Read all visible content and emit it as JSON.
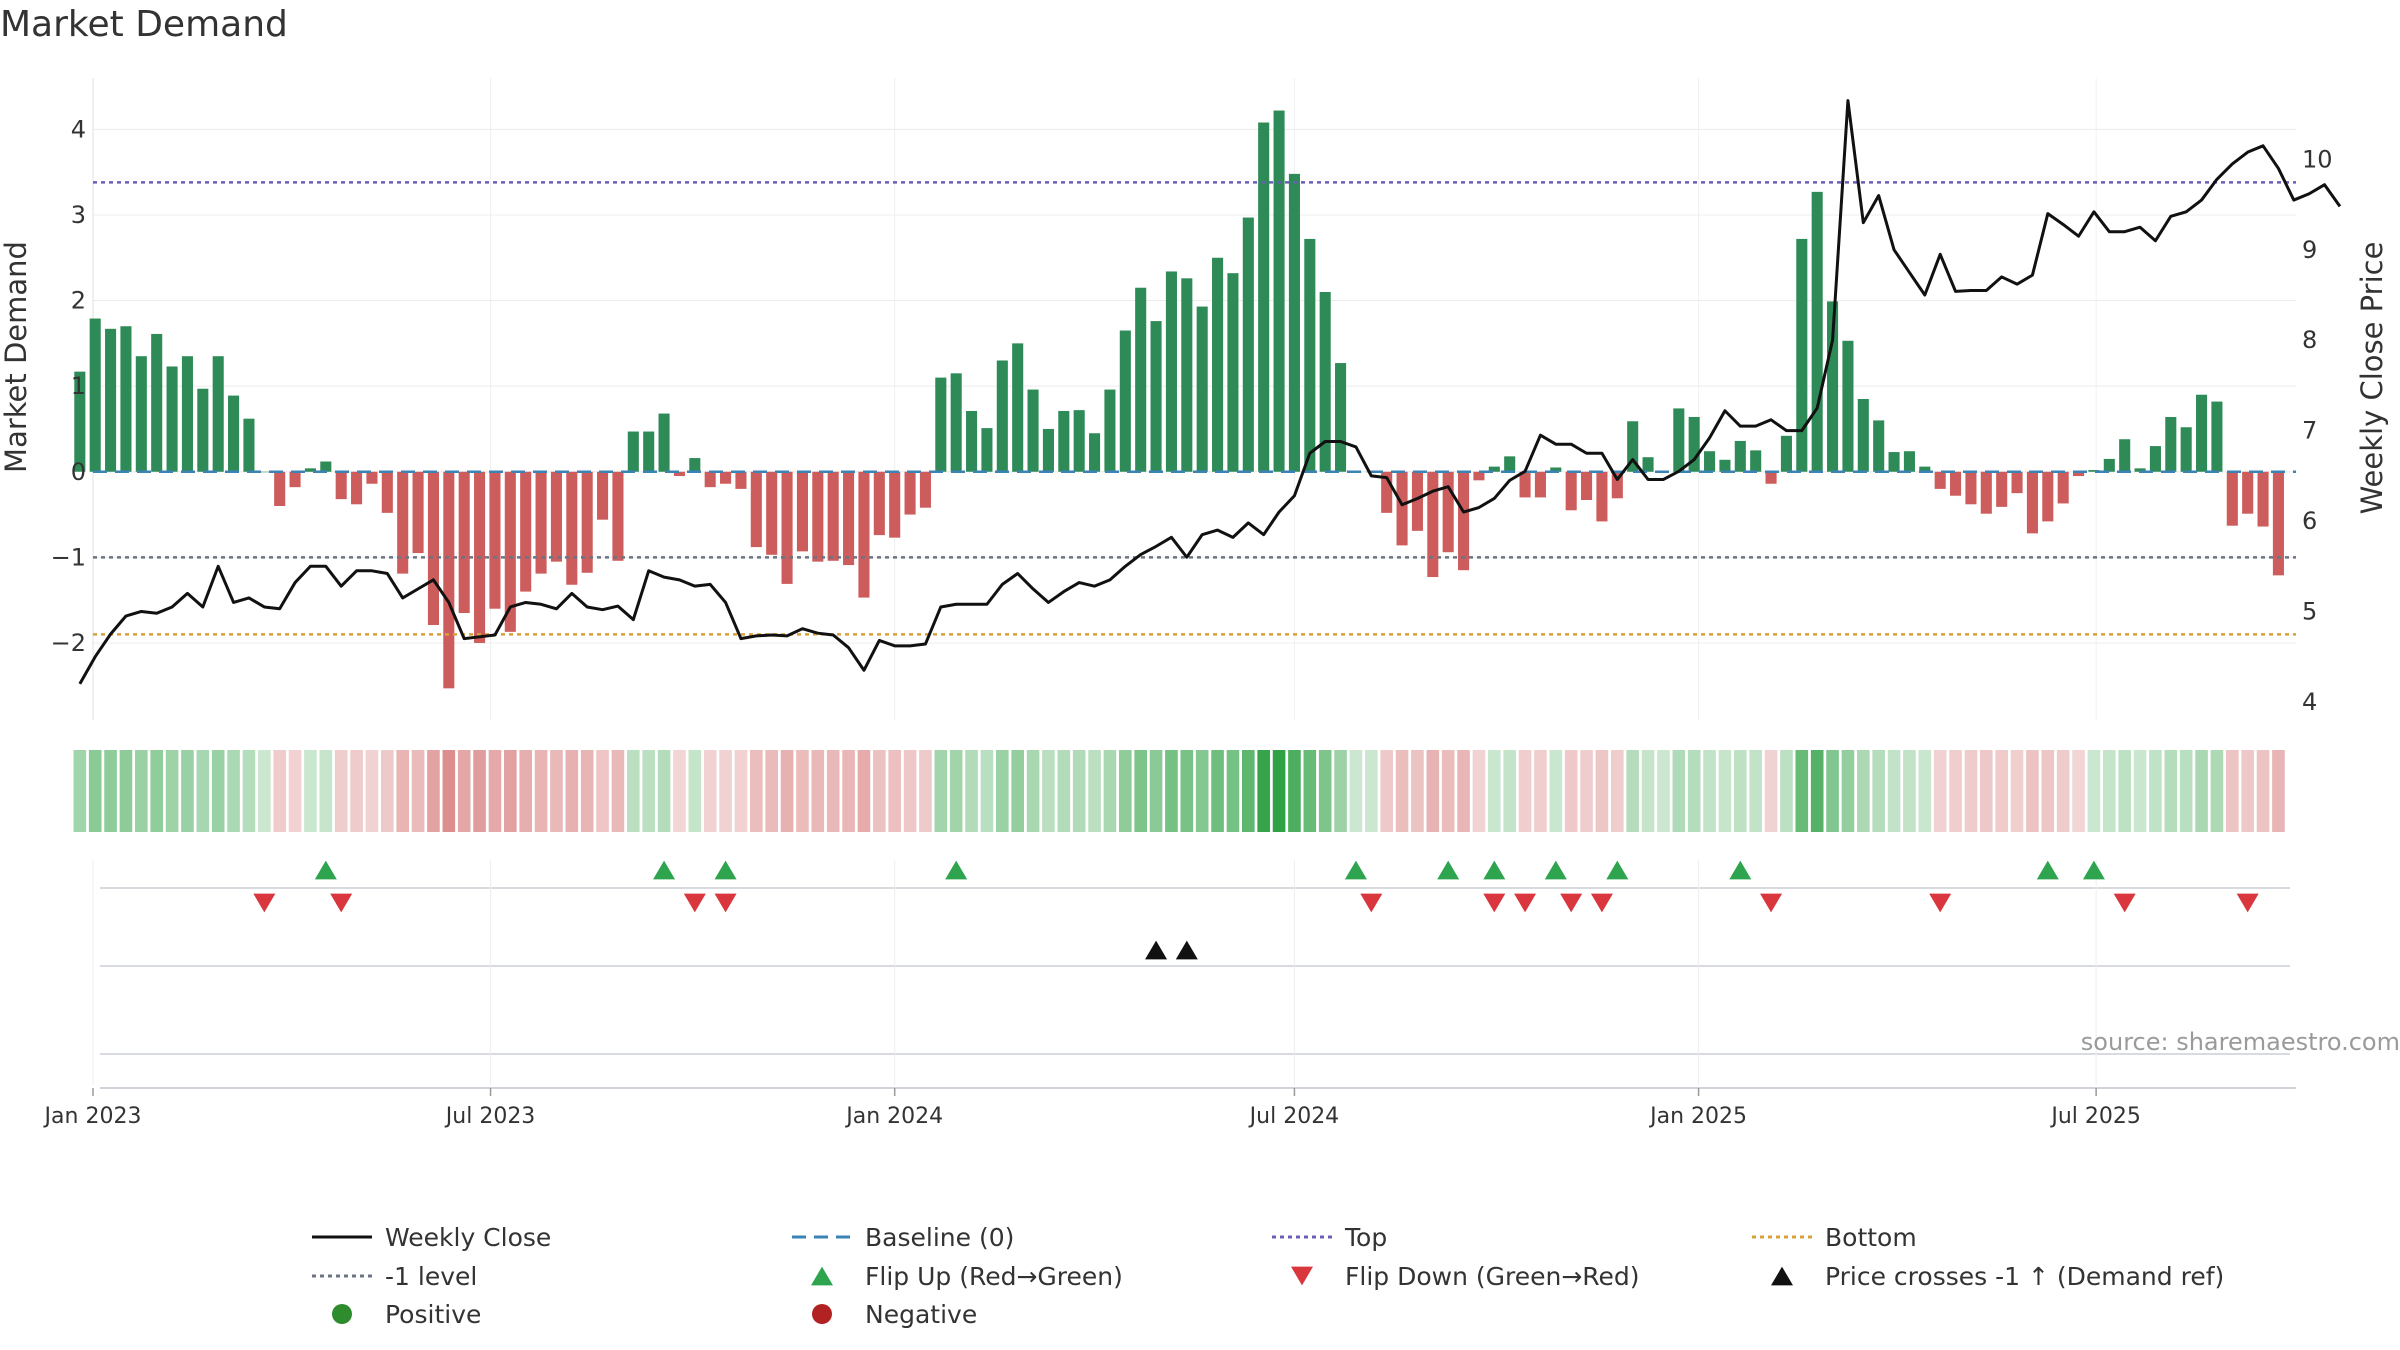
{
  "chart_data": {
    "type": "bar",
    "title": "Market Demand",
    "ylabel_left": "Market Demand",
    "ylabel_right": "Weekly Close Price",
    "ylim_left": [
      -2.9,
      4.6
    ],
    "ylim_right": [
      3.8,
      10.9
    ],
    "yticks_left": [
      -2,
      -1,
      0,
      1,
      2,
      3,
      4
    ],
    "yticks_left_labels": [
      "−2",
      "−1",
      "0",
      "1",
      "2",
      "3",
      "4"
    ],
    "yticks_right": [
      4,
      5,
      6,
      7,
      8,
      9,
      10
    ],
    "yticks_right_labels": [
      "4",
      "5",
      "6",
      "7",
      "8",
      "9",
      "10"
    ],
    "x_start": "2023-01-01",
    "x_end": "2025-09-30",
    "xtick_dates": [
      "2023-01-01",
      "2023-07-01",
      "2024-01-01",
      "2024-07-01",
      "2025-01-01",
      "2025-07-01"
    ],
    "xtick_labels": [
      "Jan 2023",
      "Jul 2023",
      "Jan 2024",
      "Jul 2024",
      "Jan 2025",
      "Jul 2025"
    ],
    "bar_start": "2022-12-26",
    "bar_step_days": 7,
    "demand": [
      1.17,
      1.79,
      1.67,
      1.7,
      1.35,
      1.61,
      1.23,
      1.35,
      0.97,
      1.35,
      0.89,
      0.62,
      0.0,
      -0.4,
      -0.18,
      0.04,
      0.12,
      -0.32,
      -0.38,
      -0.14,
      -0.48,
      -1.19,
      -0.95,
      -1.79,
      -2.53,
      -1.65,
      -2.0,
      -1.6,
      -1.87,
      -1.4,
      -1.19,
      -1.05,
      -1.32,
      -1.18,
      -0.56,
      -1.04,
      0.47,
      0.47,
      0.68,
      -0.05,
      0.16,
      -0.18,
      -0.14,
      -0.2,
      -0.88,
      -0.97,
      -1.31,
      -0.93,
      -1.05,
      -1.04,
      -1.09,
      -1.47,
      -0.74,
      -0.77,
      -0.5,
      -0.42,
      1.1,
      1.15,
      0.71,
      0.51,
      1.3,
      1.5,
      0.96,
      0.5,
      0.71,
      0.72,
      0.45,
      0.96,
      1.65,
      2.15,
      1.76,
      2.34,
      2.26,
      1.93,
      2.5,
      2.32,
      2.97,
      4.08,
      4.22,
      3.48,
      2.72,
      2.1,
      1.27,
      0.0,
      0.0,
      -0.48,
      -0.86,
      -0.69,
      -1.23,
      -0.94,
      -1.15,
      -0.1,
      0.06,
      0.18,
      -0.3,
      -0.3,
      0.05,
      -0.45,
      -0.33,
      -0.58,
      -0.31,
      0.59,
      0.17,
      0.0,
      0.74,
      0.64,
      0.24,
      0.14,
      0.36,
      0.25,
      -0.14,
      0.42,
      2.72,
      3.27,
      1.99,
      1.53,
      0.85,
      0.6,
      0.23,
      0.24,
      0.06,
      -0.2,
      -0.28,
      -0.38,
      -0.49,
      -0.41,
      -0.25,
      -0.72,
      -0.58,
      -0.37,
      -0.05,
      0.02,
      0.15,
      0.38,
      0.04,
      0.3,
      0.64,
      0.52,
      0.9,
      0.82,
      -0.63,
      -0.49,
      -0.64,
      -1.21
    ],
    "price": [
      4.2,
      4.5,
      4.75,
      4.95,
      5.0,
      4.98,
      5.05,
      5.2,
      5.05,
      5.5,
      5.1,
      5.15,
      5.05,
      5.03,
      5.32,
      5.5,
      5.5,
      5.28,
      5.45,
      5.45,
      5.42,
      5.15,
      5.25,
      5.35,
      5.1,
      4.7,
      4.72,
      4.74,
      5.05,
      5.1,
      5.08,
      5.03,
      5.2,
      5.05,
      5.02,
      5.06,
      4.91,
      5.45,
      5.38,
      5.35,
      5.28,
      5.3,
      5.1,
      4.7,
      4.73,
      4.74,
      4.73,
      4.81,
      4.76,
      4.74,
      4.6,
      4.35,
      4.68,
      4.62,
      4.62,
      4.64,
      5.05,
      5.08,
      5.08,
      5.08,
      5.3,
      5.42,
      5.25,
      5.1,
      5.22,
      5.32,
      5.28,
      5.35,
      5.5,
      5.63,
      5.72,
      5.82,
      5.6,
      5.85,
      5.9,
      5.82,
      5.98,
      5.85,
      6.1,
      6.28,
      6.75,
      6.88,
      6.88,
      6.82,
      6.5,
      6.48,
      6.18,
      6.25,
      6.33,
      6.38,
      6.1,
      6.15,
      6.25,
      6.45,
      6.55,
      6.95,
      6.85,
      6.85,
      6.75,
      6.75,
      6.46,
      6.68,
      6.46,
      6.46,
      6.55,
      6.68,
      6.92,
      7.22,
      7.05,
      7.05,
      7.12,
      7.0,
      7.0,
      7.25,
      8.0,
      10.65,
      9.3,
      9.6,
      9.0,
      8.75,
      8.5,
      8.95,
      8.54,
      8.55,
      8.55,
      8.7,
      8.62,
      8.72,
      9.4,
      9.28,
      9.15,
      9.42,
      9.2,
      9.2,
      9.25,
      9.1,
      9.37,
      9.42,
      9.55,
      9.78,
      9.95,
      10.08,
      10.15,
      9.9,
      9.55,
      9.62,
      9.72,
      9.48
    ],
    "top_level": 3.38,
    "bottom_level": -1.9,
    "minus1_level": -1,
    "flip_up_weeks": [
      16,
      38,
      42,
      57,
      83,
      89,
      92,
      96,
      100,
      108,
      128,
      131
    ],
    "flip_down_weeks": [
      12,
      17,
      40,
      42,
      84,
      92,
      94,
      97,
      99,
      110,
      121,
      133,
      141
    ],
    "price_cross_weeks": [
      70,
      72
    ],
    "source_text": "source: sharemaestro.com",
    "legend": [
      {
        "label": "Weekly Close",
        "kind": "line",
        "color": "#111111"
      },
      {
        "label": "Baseline (0)",
        "kind": "dashed-line",
        "color": "#3b83b4"
      },
      {
        "label": "Top",
        "kind": "dotted-line",
        "color": "#6a5fb7"
      },
      {
        "label": "Bottom",
        "kind": "dotted-line",
        "color": "#d9a13a"
      },
      {
        "label": "-1 level",
        "kind": "dotted-line",
        "color": "#6c7383"
      },
      {
        "label": "Flip Up (Red→Green)",
        "kind": "triangle-up",
        "color": "#2ea44f"
      },
      {
        "label": "Flip Down (Green→Red)",
        "kind": "triangle-down",
        "color": "#d9363e"
      },
      {
        "label": "Price crosses -1 ↑ (Demand ref)",
        "kind": "triangle-up",
        "color": "#111111"
      },
      {
        "label": "Positive",
        "kind": "circle",
        "color": "#2e8b2e"
      },
      {
        "label": "Negative",
        "kind": "circle",
        "color": "#b22222"
      }
    ],
    "colors": {
      "positive_bar": "#2e8b57",
      "negative_bar": "#cd5c5c",
      "price_line": "#111111",
      "top_line": "#6a5fb7",
      "bottom_line": "#d9a13a",
      "minus1_line": "#6c7383",
      "baseline": "#3b83b4",
      "flip_up": "#2ea44f",
      "flip_down": "#d9363e",
      "cross_marker": "#111111"
    }
  }
}
